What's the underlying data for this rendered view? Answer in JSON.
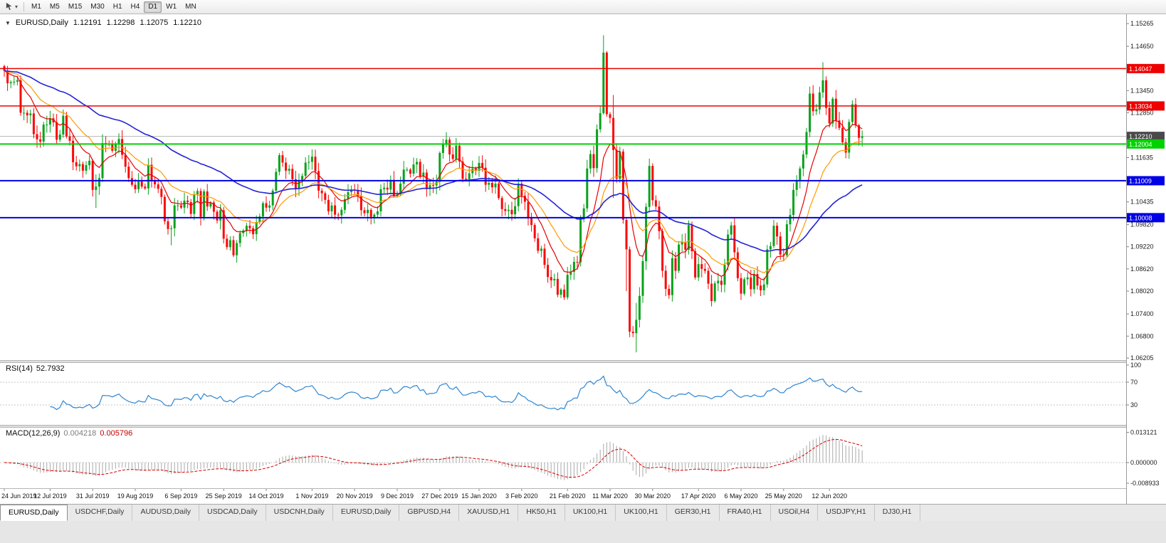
{
  "toolbar": {
    "cursor_tool": "crosshair-cursor-tool",
    "timeframes": [
      "M1",
      "M5",
      "M15",
      "M30",
      "H1",
      "H4",
      "D1",
      "W1",
      "MN"
    ],
    "active_timeframe": "D1"
  },
  "main_pane": {
    "collapse_glyph": "▼",
    "symbol": "EURUSD,Daily",
    "open": "1.12191",
    "high": "1.12298",
    "low": "1.12075",
    "close": "1.12210"
  },
  "rsi_pane": {
    "label": "RSI(14)",
    "value": "52.7932"
  },
  "macd_pane": {
    "label": "MACD(12,26,9)",
    "value1": "0.004218",
    "value2": "0.005796"
  },
  "tabs": {
    "items": [
      {
        "label": "EURUSD,Daily",
        "active": true
      },
      {
        "label": "USDCHF,Daily",
        "active": false
      },
      {
        "label": "AUDUSD,Daily",
        "active": false
      },
      {
        "label": "USDCAD,Daily",
        "active": false
      },
      {
        "label": "USDCNH,Daily",
        "active": false
      },
      {
        "label": "EURUSD,Daily",
        "active": false
      },
      {
        "label": "GBPUSD,H4",
        "active": false
      },
      {
        "label": "XAUUSD,H1",
        "active": false
      },
      {
        "label": "HK50,H1",
        "active": false
      },
      {
        "label": "UK100,H1",
        "active": false
      },
      {
        "label": "UK100,H1",
        "active": false
      },
      {
        "label": "GER30,H1",
        "active": false
      },
      {
        "label": "FRA40,H1",
        "active": false
      },
      {
        "label": "USOil,H4",
        "active": false
      },
      {
        "label": "USDJPY,H1",
        "active": false
      },
      {
        "label": "DJ30,H1",
        "active": false
      }
    ]
  },
  "chart_data": {
    "type": "candlestick+indicators",
    "main": {
      "price_max": 1.1548,
      "price_min": 1.0615,
      "up_color": "#08a21c",
      "down_color": "#fb0707",
      "y_ticks": [
        "1.15265",
        "1.14650",
        "1.13450",
        "1.12850",
        "1.11635",
        "1.10435",
        "1.09820",
        "1.09220",
        "1.08620",
        "1.08020",
        "1.07400",
        "1.06800",
        "1.06205"
      ],
      "hlines": [
        {
          "price": 1.14047,
          "label": "1.14047",
          "color": "#ef0000",
          "width": 1.5
        },
        {
          "price": 1.13034,
          "label": "1.13034",
          "color": "#ef0000",
          "width": 1.5
        },
        {
          "price": 1.1221,
          "label": "1.12210",
          "color": "#b4b4b4",
          "width": 1,
          "label_bg": "#4a4a4a",
          "is_price": true
        },
        {
          "price": 1.12004,
          "label": "1.12004",
          "color": "#00d200",
          "width": 2
        },
        {
          "price": 1.11009,
          "label": "1.11009",
          "color": "#0000e6",
          "width": 2
        },
        {
          "price": 1.10008,
          "label": "1.10008",
          "color": "#0000e6",
          "width": 2
        }
      ],
      "ma": [
        {
          "period": 10,
          "color": "#e60000",
          "width": 1.2
        },
        {
          "period": 21,
          "color": "#ff9a00",
          "width": 1.2
        },
        {
          "period": 60,
          "color": "#2323d6",
          "width": 1.6
        }
      ],
      "closes": [
        1.1399,
        1.1365,
        1.1368,
        1.1369,
        1.1373,
        1.1285,
        1.1285,
        1.1278,
        1.1283,
        1.1227,
        1.1213,
        1.1207,
        1.1253,
        1.1253,
        1.127,
        1.1259,
        1.1212,
        1.1226,
        1.1277,
        1.1221,
        1.1209,
        1.1151,
        1.114,
        1.1146,
        1.1128,
        1.1143,
        1.1155,
        1.1076,
        1.1085,
        1.1108,
        1.1203,
        1.12,
        1.1199,
        1.1182,
        1.1199,
        1.1214,
        1.1171,
        1.1139,
        1.1108,
        1.109,
        1.1078,
        1.1099,
        1.1085,
        1.108,
        1.1144,
        1.1101,
        1.1091,
        1.1079,
        1.1057,
        1.0991,
        1.097,
        1.0972,
        1.1034,
        1.1034,
        1.1028,
        1.1047,
        1.1043,
        1.1011,
        1.1063,
        1.1073,
        1.1003,
        1.1072,
        1.1031,
        1.1042,
        1.1017,
        1.0993,
        1.1021,
        1.0944,
        1.0921,
        1.094,
        1.0899,
        1.0932,
        1.0959,
        1.0966,
        1.0979,
        1.0972,
        1.0956,
        1.0989,
        1.1004,
        1.104,
        1.1028,
        1.1034,
        1.1074,
        1.1125,
        1.117,
        1.115,
        1.1128,
        1.1133,
        1.1105,
        1.108,
        1.11,
        1.1114,
        1.115,
        1.1152,
        1.1166,
        1.1127,
        1.1074,
        1.1067,
        1.1049,
        1.1018,
        1.1034,
        1.1009,
        1.1007,
        1.1022,
        1.1051,
        1.107,
        1.1077,
        1.1074,
        1.106,
        1.1021,
        1.1013,
        1.1022,
        1.1003,
        1.1009,
        1.1018,
        1.1078,
        1.1082,
        1.1077,
        1.1103,
        1.106,
        1.1064,
        1.1093,
        1.1131,
        1.1131,
        1.112,
        1.1145,
        1.1152,
        1.1113,
        1.1123,
        1.1078,
        1.1089,
        1.1088,
        1.1098,
        1.1176,
        1.1199,
        1.1212,
        1.1172,
        1.116,
        1.1196,
        1.1153,
        1.1106,
        1.1105,
        1.1121,
        1.1134,
        1.1128,
        1.1149,
        1.1136,
        1.109,
        1.1095,
        1.1083,
        1.1093,
        1.1054,
        1.1024,
        1.1019,
        1.1022,
        1.101,
        1.1032,
        1.1093,
        1.106,
        1.1044,
        1.0999,
        1.0981,
        1.0945,
        1.0911,
        1.0917,
        1.0873,
        1.084,
        1.0831,
        1.0835,
        1.0792,
        1.0806,
        1.0785,
        1.0846,
        1.0854,
        1.0881,
        1.088,
        1.1,
        1.1026,
        1.1134,
        1.1173,
        1.1135,
        1.124,
        1.1284,
        1.1448,
        1.1281,
        1.1271,
        1.1184,
        1.1106,
        1.118,
        1.0995,
        1.0915,
        1.0692,
        1.0688,
        1.0724,
        1.0789,
        1.0883,
        1.103,
        1.1141,
        1.1048,
        1.1031,
        1.0964,
        1.0857,
        1.0808,
        1.0791,
        1.0891,
        1.0857,
        1.0928,
        1.0935,
        1.0914,
        1.0981,
        1.091,
        1.0839,
        1.0875,
        1.0862,
        1.0857,
        1.0822,
        1.0775,
        1.0823,
        1.083,
        1.0819,
        1.0873,
        1.0955,
        1.098,
        1.0907,
        1.0837,
        1.0795,
        1.0834,
        1.0839,
        1.0807,
        1.0848,
        1.0817,
        1.0804,
        1.082,
        1.0915,
        1.0924,
        1.0979,
        1.095,
        1.0901,
        1.0899,
        1.0983,
        1.1008,
        1.1076,
        1.1102,
        1.1134,
        1.1172,
        1.1233,
        1.1337,
        1.1289,
        1.1294,
        1.134,
        1.1373,
        1.1298,
        1.1256,
        1.1323,
        1.1264,
        1.1244,
        1.1205,
        1.1177,
        1.126,
        1.1308,
        1.1251,
        1.1217,
        1.1221
      ],
      "wick_overrides": {
        "1": [
          1.1412,
          1.1344
        ],
        "28": [
          1.1118,
          1.1027
        ],
        "51": [
          1.098,
          1.0926
        ],
        "71": [
          1.094,
          1.0879
        ],
        "171": [
          1.082,
          1.0778
        ],
        "183": [
          1.1495,
          1.128
        ],
        "186": [
          1.1333,
          1.1054
        ],
        "190": [
          1.1,
          1.0802
        ],
        "193": [
          1.077,
          1.0636
        ],
        "250": [
          1.1422,
          1.1325
        ]
      },
      "x_labels": [
        {
          "i": 0,
          "t": "24 Jun 2019"
        },
        {
          "i": 14,
          "t": "12 Jul 2019"
        },
        {
          "i": 27,
          "t": "31 Jul 2019"
        },
        {
          "i": 40,
          "t": "19 Aug 2019"
        },
        {
          "i": 54,
          "t": "6 Sep 2019"
        },
        {
          "i": 67,
          "t": "25 Sep 2019"
        },
        {
          "i": 80,
          "t": "14 Oct 2019"
        },
        {
          "i": 94,
          "t": "1 Nov 2019"
        },
        {
          "i": 107,
          "t": "20 Nov 2019"
        },
        {
          "i": 120,
          "t": "9 Dec 2019"
        },
        {
          "i": 133,
          "t": "27 Dec 2019"
        },
        {
          "i": 145,
          "t": "15 Jan 2020"
        },
        {
          "i": 158,
          "t": "3 Feb 2020"
        },
        {
          "i": 172,
          "t": "21 Feb 2020"
        },
        {
          "i": 185,
          "t": "11 Mar 2020"
        },
        {
          "i": 198,
          "t": "30 Mar 2020"
        },
        {
          "i": 212,
          "t": "17 Apr 2020"
        },
        {
          "i": 225,
          "t": "6 May 2020"
        },
        {
          "i": 238,
          "t": "25 May 2020"
        },
        {
          "i": 252,
          "t": "12 Jun 2020"
        }
      ]
    },
    "rsi": {
      "period": 14,
      "current": 52.7932,
      "levels": [
        70,
        30
      ],
      "y_ticks": [
        "100",
        "70",
        "30"
      ],
      "color": "#2f86d2"
    },
    "macd": {
      "fast": 12,
      "slow": 26,
      "signal": 9,
      "current_main": 0.004218,
      "current_signal": 0.005796,
      "y_ticks": [
        "0.013121",
        "0.000000",
        "-0.008933"
      ],
      "scale_max": 0.0145,
      "scale_min": -0.0105,
      "hist_color": "#a9a9a9",
      "signal_color": "#d40000"
    }
  }
}
